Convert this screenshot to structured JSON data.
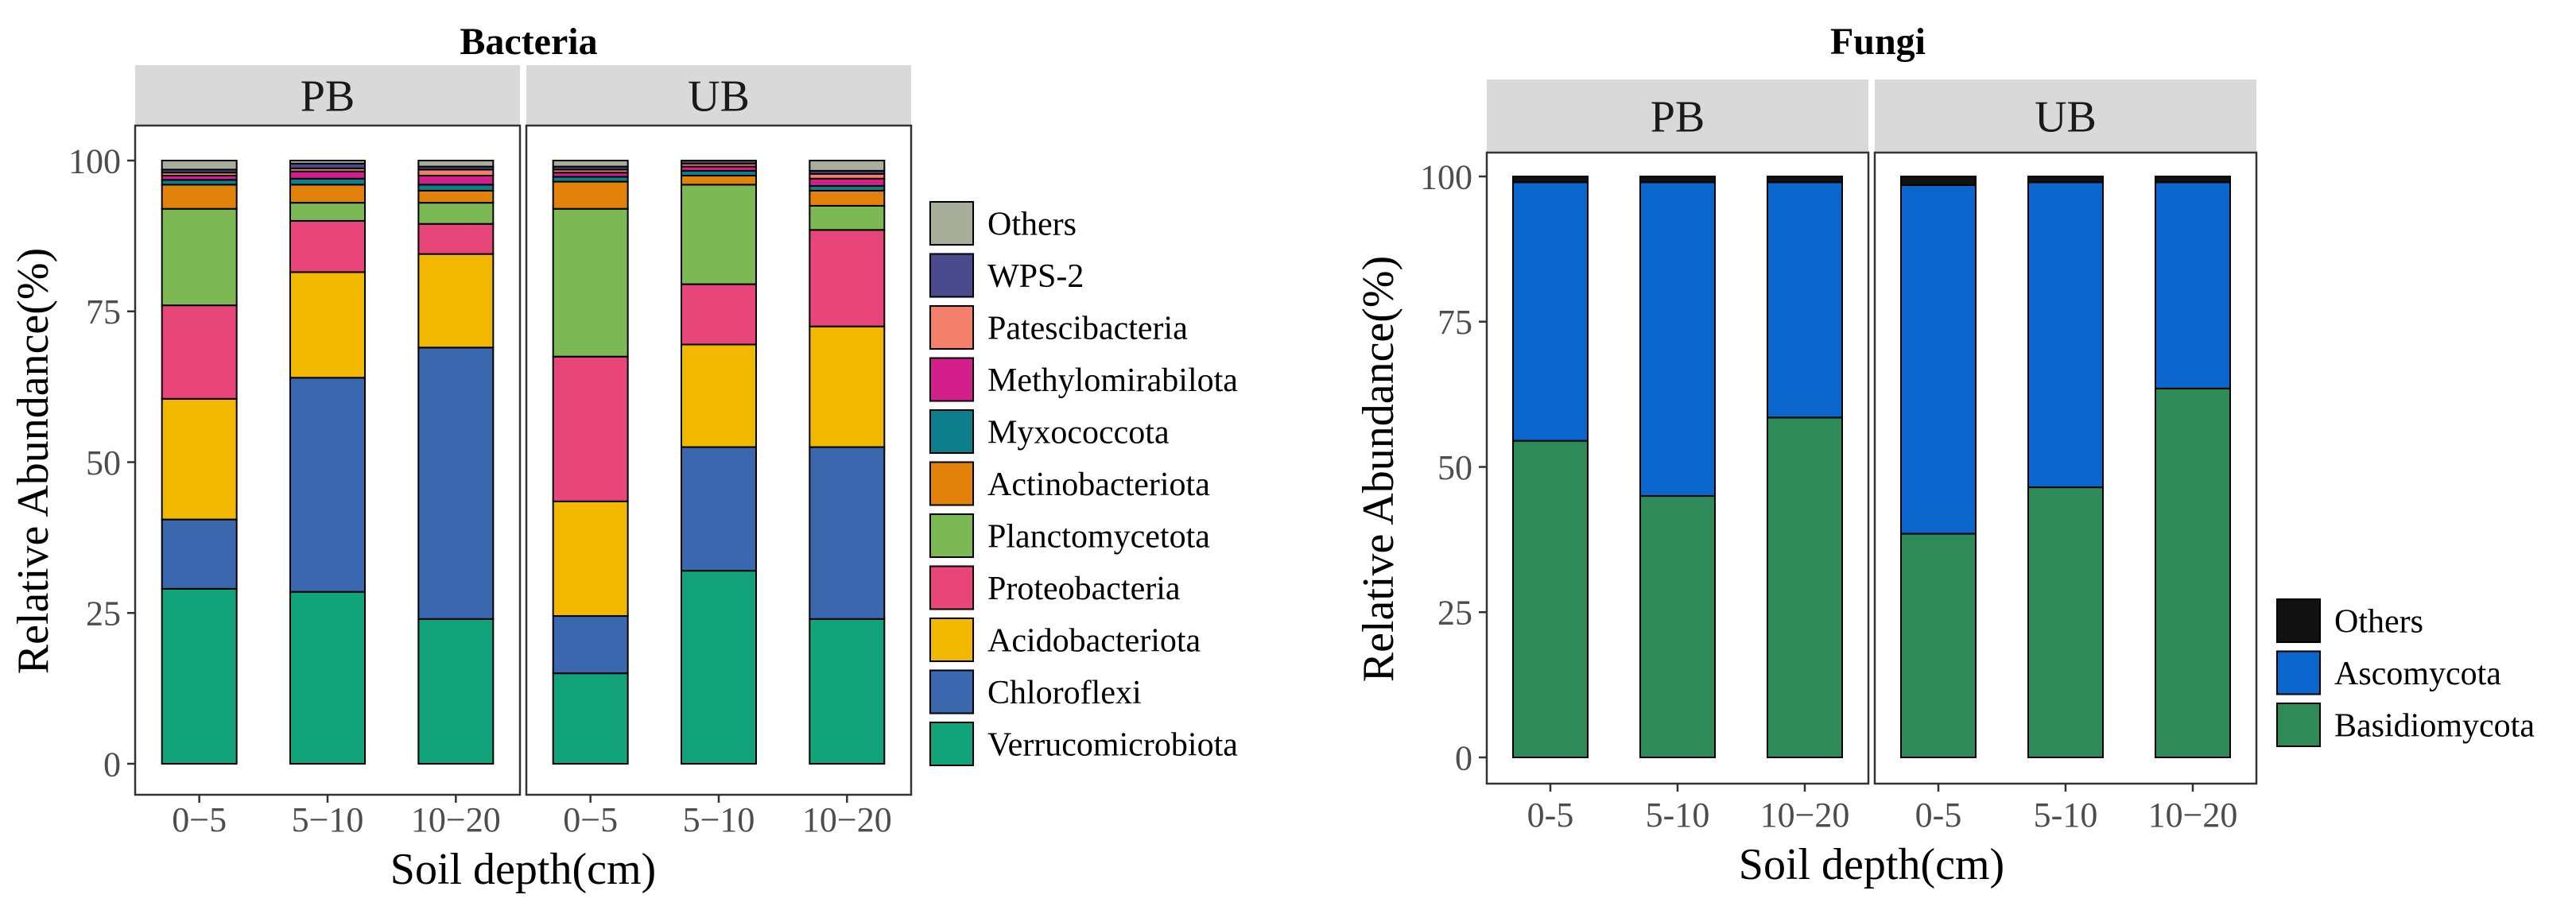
{
  "chart_data": [
    {
      "type": "bar",
      "stacked": true,
      "title": "Bacteria",
      "xlabel": "Soil depth(cm)",
      "ylabel": "Relative Abundance(%)",
      "ylim": [
        0,
        100
      ],
      "yticks": [
        "0",
        "25",
        "50",
        "75",
        "100"
      ],
      "categories": [
        "0−5",
        "5−10",
        "10−20"
      ],
      "facets": [
        "PB",
        "UB"
      ],
      "legend_position": "right",
      "series": [
        {
          "name": "Verrucomicrobiota",
          "color": "#13A37A",
          "values": {
            "PB": [
              29.0,
              28.5,
              24.0
            ],
            "UB": [
              15.0,
              32.0,
              24.0
            ]
          }
        },
        {
          "name": "Chloroflexi",
          "color": "#3A67AE",
          "values": {
            "PB": [
              11.5,
              35.5,
              45.0
            ],
            "UB": [
              9.5,
              20.5,
              28.5
            ]
          }
        },
        {
          "name": "Acidobacteriota",
          "color": "#F2B800",
          "values": {
            "PB": [
              20.0,
              17.5,
              15.5
            ],
            "UB": [
              19.0,
              17.0,
              20.0
            ]
          }
        },
        {
          "name": "Proteobacteria",
          "color": "#E8457A",
          "values": {
            "PB": [
              15.5,
              8.5,
              5.0
            ],
            "UB": [
              24.0,
              10.0,
              16.0
            ]
          }
        },
        {
          "name": "Planctomycetota",
          "color": "#7CB955",
          "values": {
            "PB": [
              16.0,
              3.0,
              3.5
            ],
            "UB": [
              24.5,
              16.5,
              4.0
            ]
          }
        },
        {
          "name": "Actinobacteriota",
          "color": "#E3820B",
          "values": {
            "PB": [
              4.0,
              3.0,
              2.0
            ],
            "UB": [
              4.5,
              1.5,
              2.5
            ]
          }
        },
        {
          "name": "Myxococcota",
          "color": "#0C7E8C",
          "values": {
            "PB": [
              0.8,
              1.0,
              1.0
            ],
            "UB": [
              0.8,
              0.8,
              0.8
            ]
          }
        },
        {
          "name": "Methylomirabilota",
          "color": "#D21F8C",
          "values": {
            "PB": [
              0.7,
              1.2,
              1.5
            ],
            "UB": [
              0.7,
              0.7,
              1.2
            ]
          }
        },
        {
          "name": "Patescibacteria",
          "color": "#F47F6B",
          "values": {
            "PB": [
              0.5,
              0.5,
              1.0
            ],
            "UB": [
              0.5,
              0.5,
              0.8
            ]
          }
        },
        {
          "name": "WPS-2",
          "color": "#4A4A8E",
          "values": {
            "PB": [
              0.5,
              0.8,
              0.5
            ],
            "UB": [
              0.5,
              0.5,
              0.5
            ]
          }
        },
        {
          "name": "Others",
          "color": "#A7AE9A",
          "values": {
            "PB": [
              1.5,
              0.5,
              1.0
            ],
            "UB": [
              1.0,
              0.0,
              1.7
            ]
          }
        }
      ]
    },
    {
      "type": "bar",
      "stacked": true,
      "title": "Fungi",
      "xlabel": "Soil depth(cm)",
      "ylabel": "Relative Abundance(%)",
      "ylim": [
        0,
        100
      ],
      "yticks": [
        "0",
        "25",
        "50",
        "75",
        "100"
      ],
      "categories": [
        "0-5",
        "5-10",
        "10−20"
      ],
      "facets": [
        "PB",
        "UB"
      ],
      "legend_position": "right",
      "series": [
        {
          "name": "Basidiomycota",
          "color": "#2E8B57",
          "values": {
            "PB": [
              54.5,
              45.0,
              58.5
            ],
            "UB": [
              38.5,
              46.5,
              63.5
            ]
          }
        },
        {
          "name": "Ascomycota",
          "color": "#0A66CC",
          "values": {
            "PB": [
              44.5,
              54.0,
              40.5
            ],
            "UB": [
              60.0,
              52.5,
              35.5
            ]
          }
        },
        {
          "name": "Others",
          "color": "#111111",
          "values": {
            "PB": [
              1.0,
              1.0,
              1.0
            ],
            "UB": [
              1.5,
              1.0,
              1.0
            ]
          }
        }
      ]
    }
  ]
}
